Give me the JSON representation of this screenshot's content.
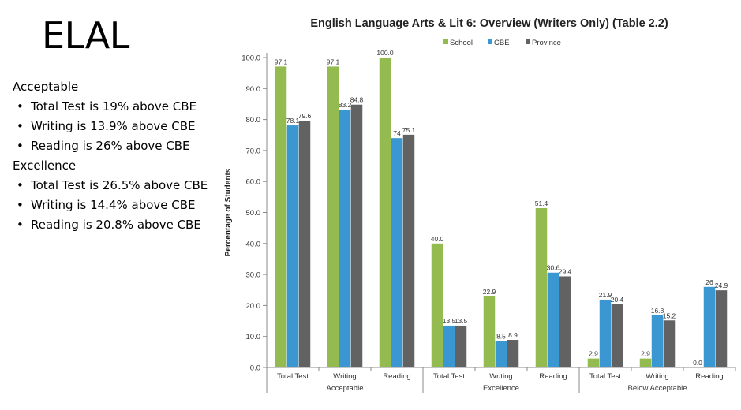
{
  "slide": {
    "title": "ELAL",
    "notes": [
      {
        "heading": "Acceptable",
        "bullets": [
          "Total Test is 19% above CBE",
          "Writing is 13.9% above CBE",
          "Reading is 26% above CBE"
        ]
      },
      {
        "heading": "Excellence",
        "bullets": [
          "Total Test is 26.5% above CBE",
          "Writing is 14.4% above CBE",
          "Reading is 20.8% above CBE"
        ]
      }
    ]
  },
  "colors": {
    "School": "#93bb4f",
    "CBE": "#3a97d1",
    "Province": "#626262",
    "axis": "#888888"
  },
  "chart_data": {
    "type": "bar",
    "title": "English Language Arts & Lit 6: Overview (Writers Only) (Table 2.2)",
    "ylabel": "Percentage of Students",
    "xlabel": "",
    "ylim": [
      0,
      100
    ],
    "yticks": [
      "0.0",
      "10.0",
      "20.0",
      "30.0",
      "40.0",
      "50.0",
      "60.0",
      "70.0",
      "80.0",
      "90.0",
      "100.0"
    ],
    "legend_position": "top",
    "groups": [
      {
        "name": "Acceptable",
        "categories": [
          "Total Test",
          "Writing",
          "Reading"
        ]
      },
      {
        "name": "Excellence",
        "categories": [
          "Total Test",
          "Writing",
          "Reading"
        ]
      },
      {
        "name": "Below Acceptable",
        "categories": [
          "Total Test",
          "Writing",
          "Reading"
        ]
      }
    ],
    "series": [
      {
        "name": "School",
        "values": [
          97.1,
          97.1,
          100.0,
          40.0,
          22.9,
          51.4,
          2.9,
          2.9,
          0.0
        ],
        "labels": [
          "97.1",
          "97.1",
          "100.0",
          "40.0",
          "22.9",
          "51.4",
          "2.9",
          "2.9",
          "0.0"
        ]
      },
      {
        "name": "CBE",
        "values": [
          78.1,
          83.2,
          74,
          13.5,
          8.5,
          30.6,
          21.9,
          16.8,
          26
        ],
        "labels": [
          "78.1",
          "83.2",
          "74",
          "13.5",
          "8.5",
          "30.6",
          "21.9",
          "16.8",
          "26"
        ]
      },
      {
        "name": "Province",
        "values": [
          79.6,
          84.8,
          75.1,
          13.5,
          8.9,
          29.4,
          20.4,
          15.2,
          24.9
        ],
        "labels": [
          "79.6",
          "84.8",
          "75.1",
          "13.5",
          "8.9",
          "29.4",
          "20.4",
          "15.2",
          "24.9"
        ]
      }
    ]
  }
}
